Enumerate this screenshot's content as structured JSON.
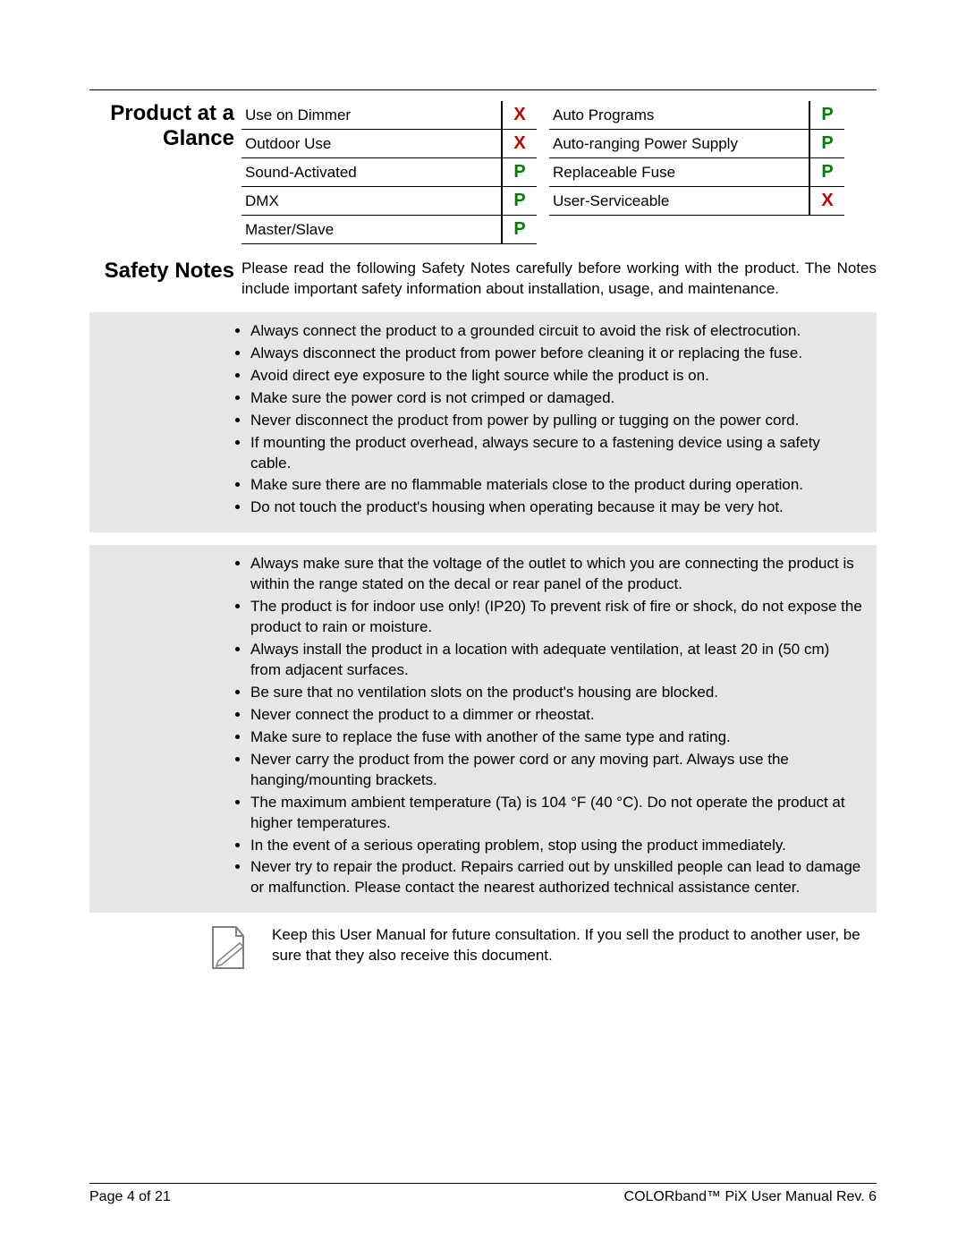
{
  "glance": {
    "title": "Product at a Glance",
    "left": [
      {
        "label": "Use on Dimmer",
        "mark": "X",
        "cls": "mark-x"
      },
      {
        "label": "Outdoor Use",
        "mark": "X",
        "cls": "mark-x"
      },
      {
        "label": "Sound-Activated",
        "mark": "P",
        "cls": "mark-p"
      },
      {
        "label": "DMX",
        "mark": "P",
        "cls": "mark-p"
      },
      {
        "label": "Master/Slave",
        "mark": "P",
        "cls": "mark-p"
      }
    ],
    "right": [
      {
        "label": "Auto Programs",
        "mark": "P",
        "cls": "mark-p"
      },
      {
        "label": "Auto-ranging Power Supply",
        "mark": "P",
        "cls": "mark-p"
      },
      {
        "label": "Replaceable Fuse",
        "mark": "P",
        "cls": "mark-p"
      },
      {
        "label": "User-Serviceable",
        "mark": "X",
        "cls": "mark-x"
      }
    ]
  },
  "safety": {
    "title": "Safety Notes",
    "intro": "Please read the following Safety Notes carefully before working with the product. The Notes include important safety information about installation, usage, and maintenance.",
    "warning": [
      "Always connect the product to a grounded circuit to avoid the risk of electrocution.",
      "Always disconnect the product from power before cleaning it or replacing the fuse.",
      "Avoid direct eye exposure to the light source while the product is on.",
      "Make sure the power cord is not crimped or damaged.",
      "Never disconnect the product from power by pulling or tugging on the power cord.",
      "If mounting the product overhead, always secure to a fastening device using a safety cable.",
      "Make sure there are no flammable materials close to the product during operation.",
      "Do not touch the product's housing when operating because it may be very hot."
    ],
    "info": [
      "Always make sure that the voltage of the outlet to which you are connecting the product is within the range stated on the decal or rear panel of the product.",
      "The product is for indoor use only! (IP20) To prevent risk of fire or shock, do not expose the product to rain or moisture.",
      "Always install the product in a location with adequate ventilation, at least 20 in (50 cm) from adjacent surfaces.",
      "Be sure that no ventilation slots on the product's housing are blocked.",
      "Never connect the product to a dimmer or rheostat.",
      "Make sure to replace the fuse with another of the same type and rating.",
      "Never carry the product from the power cord or any moving part. Always use the hanging/mounting brackets.",
      "The maximum ambient temperature (Ta) is 104 °F (40 °C). Do not operate the product at higher temperatures.",
      "In the event of a serious operating problem, stop using the product immediately.",
      "Never try to repair the product. Repairs carried out by unskilled people can lead to damage or malfunction. Please contact the nearest authorized technical assistance center."
    ],
    "doc_note": "Keep this User Manual for future consultation. If you sell the product to another user, be sure that they also receive this document."
  },
  "footer": {
    "left": "Page 4 of 21",
    "right": "COLORband™ PiX User Manual Rev. 6"
  },
  "colors": {
    "bg_gray": "#e6e6e6",
    "mark_x": "#c00000",
    "mark_p": "#008000"
  }
}
